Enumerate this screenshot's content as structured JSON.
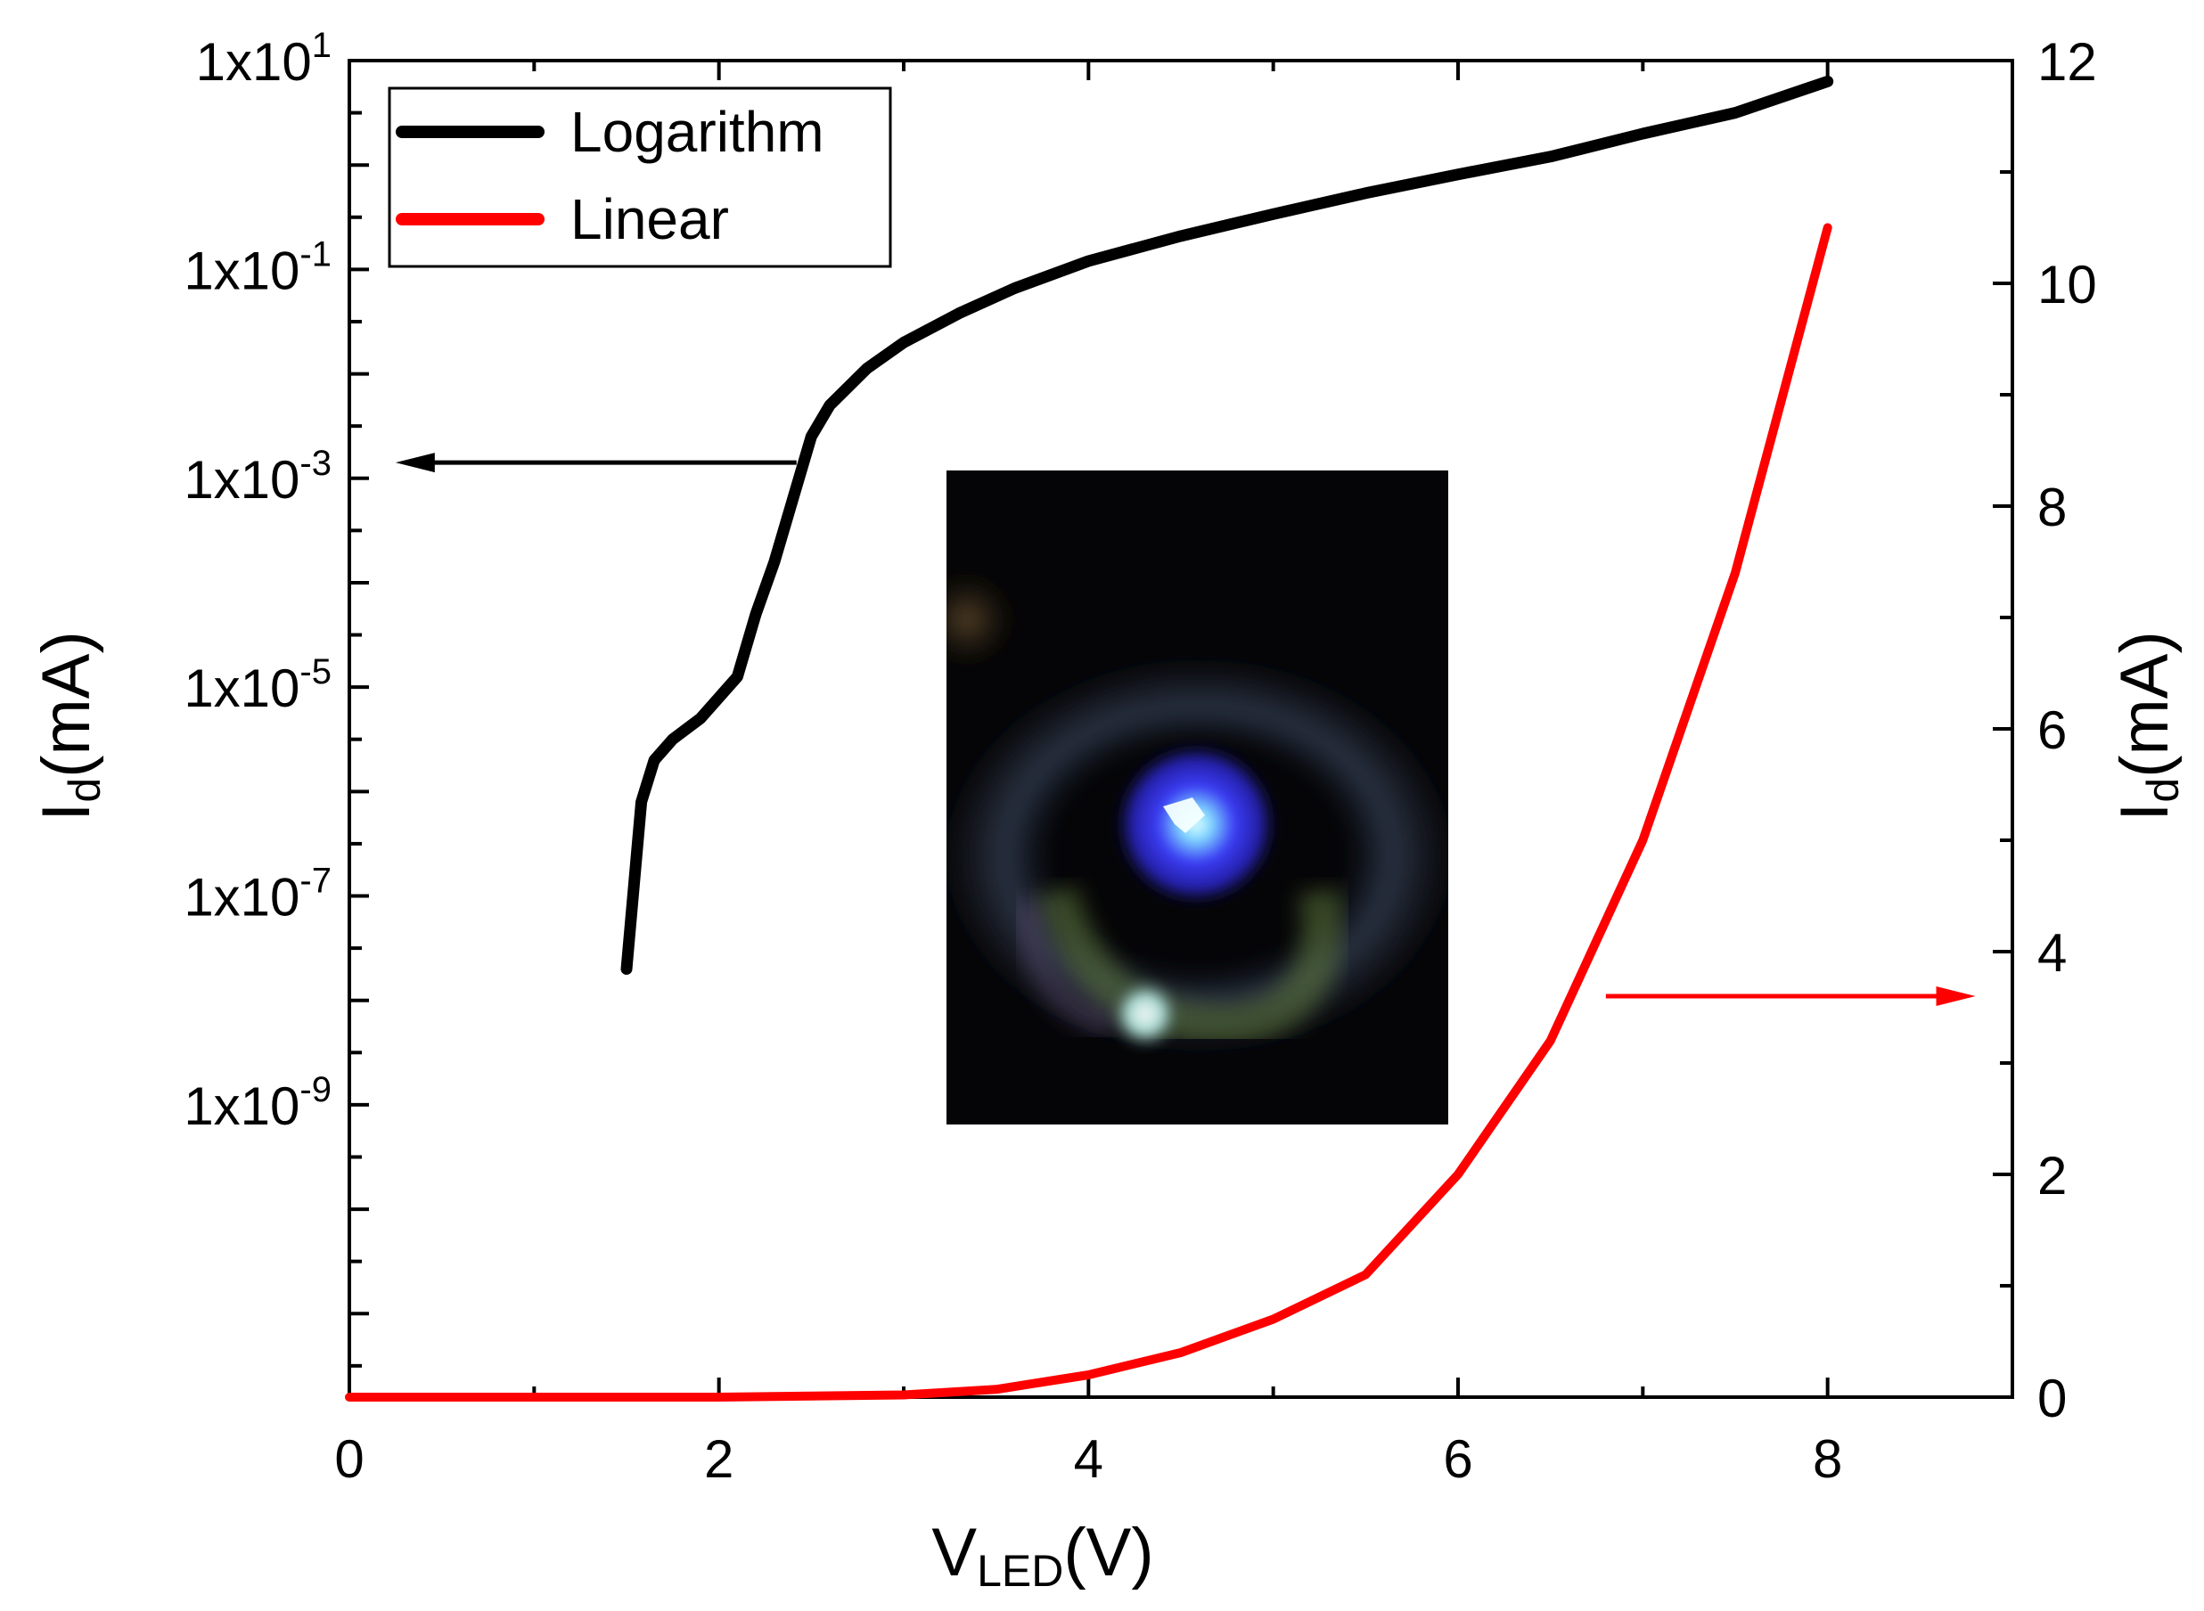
{
  "chart_data": {
    "type": "line",
    "title": "",
    "xlabel": {
      "main": "V",
      "sub": "LED",
      "unit": "(V)"
    },
    "ylabel_left": {
      "main": "I",
      "sub": "d",
      "unit": "(mA)"
    },
    "ylabel_right": {
      "main": "I",
      "sub": "d",
      "unit": "(mA)"
    },
    "xlim": [
      0,
      9
    ],
    "x_ticks": [
      {
        "value": 0,
        "label": "0"
      },
      {
        "value": 2,
        "label": "2"
      },
      {
        "value": 4,
        "label": "4"
      },
      {
        "value": 6,
        "label": "6"
      },
      {
        "value": 8,
        "label": "8"
      }
    ],
    "y_left_scale": "log",
    "y_left_log_range": [
      -11.8,
      1
    ],
    "y_left_ticks": [
      {
        "exp": 1,
        "base": "1x10",
        "sup": "1"
      },
      {
        "exp": -1,
        "base": "1x10",
        "sup": "-1"
      },
      {
        "exp": -3,
        "base": "1x10",
        "sup": "-3"
      },
      {
        "exp": -5,
        "base": "1x10",
        "sup": "-5"
      },
      {
        "exp": -7,
        "base": "1x10",
        "sup": "-7"
      },
      {
        "exp": -9,
        "base": "1x10",
        "sup": "-9"
      }
    ],
    "y_right_scale": "linear",
    "y_right_lim": [
      0,
      12
    ],
    "y_right_ticks": [
      {
        "value": 0,
        "label": "0"
      },
      {
        "value": 2,
        "label": "2"
      },
      {
        "value": 4,
        "label": "4"
      },
      {
        "value": 6,
        "label": "6"
      },
      {
        "value": 8,
        "label": "8"
      },
      {
        "value": 10,
        "label": "10"
      },
      {
        "value": 12,
        "label": "12"
      }
    ],
    "legend": {
      "position": "top-left"
    },
    "series": [
      {
        "name": "Logarithm",
        "axis": "left",
        "color": "#000000",
        "x": [
          1.5,
          1.58,
          1.65,
          1.75,
          1.9,
          2.0,
          2.1,
          2.2,
          2.3,
          2.4,
          2.5,
          2.6,
          2.8,
          3.0,
          3.3,
          3.6,
          4.0,
          4.5,
          5.0,
          5.5,
          6.0,
          6.5,
          7.0,
          7.5,
          8.0
        ],
        "y_log": [
          -7.7,
          -6.1,
          -5.7,
          -5.5,
          -5.3,
          -5.1,
          -4.9,
          -4.3,
          -3.8,
          -3.2,
          -2.6,
          -2.3,
          -1.95,
          -1.7,
          -1.42,
          -1.18,
          -0.92,
          -0.68,
          -0.47,
          -0.27,
          -0.09,
          0.08,
          0.3,
          0.5,
          0.8
        ]
      },
      {
        "name": "Linear",
        "axis": "right",
        "color": "#ff0000",
        "x": [
          0,
          1,
          2,
          3,
          3.5,
          4.0,
          4.5,
          5.0,
          5.5,
          6.0,
          6.5,
          7.0,
          7.5,
          8.0
        ],
        "y": [
          0,
          0,
          0,
          0.02,
          0.07,
          0.2,
          0.4,
          0.7,
          1.1,
          2.0,
          3.2,
          5.0,
          7.4,
          10.5
        ]
      }
    ],
    "annotations": [
      {
        "type": "arrow",
        "direction": "left",
        "color": "#000000",
        "from_x": 2.42,
        "to_x": 0.25,
        "y_log": -2.85,
        "meaning": "Logarithm curve reads on left axis"
      },
      {
        "type": "arrow",
        "direction": "right",
        "color": "#ff0000",
        "from_x": 6.8,
        "to_x": 8.8,
        "y": 3.6,
        "meaning": "Linear curve reads on right axis"
      }
    ],
    "inset": {
      "type": "photo",
      "subject": "glowing blue LED"
    }
  }
}
